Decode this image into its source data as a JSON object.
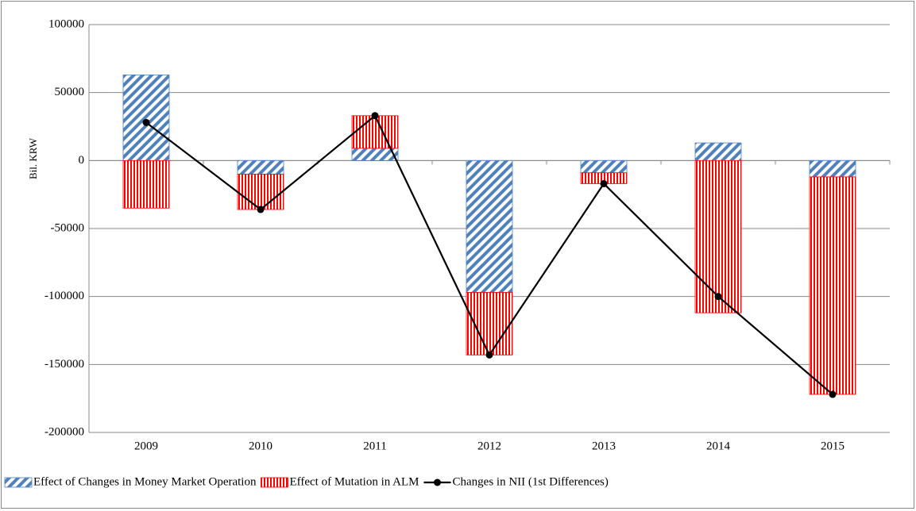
{
  "chart_data": {
    "type": "bar",
    "y_label": "Bil. KRW",
    "categories": [
      "2009",
      "2010",
      "2011",
      "2012",
      "2013",
      "2014",
      "2015"
    ],
    "series": [
      {
        "name": "Effect of Changes in Money Market Operation",
        "color": "#4f81bd",
        "kind": "bar",
        "values": [
          63000,
          -10000,
          9000,
          -97000,
          -9000,
          13000,
          -12000
        ]
      },
      {
        "name": "Effect of Mutation in ALM",
        "color": "#ff0000",
        "kind": "bar",
        "values": [
          -35000,
          -26000,
          24000,
          -46000,
          -8000,
          -112000,
          -160000
        ]
      },
      {
        "name": "Changes in NII (1st Differences)",
        "color": "#000000",
        "kind": "line",
        "values": [
          28000,
          -36000,
          33000,
          -143000,
          -17000,
          -100000,
          -172000
        ]
      }
    ],
    "ylim": [
      -200000,
      100000
    ],
    "yticks": [
      -200000,
      -150000,
      -100000,
      -50000,
      0,
      50000,
      100000
    ],
    "grid": true,
    "legend": "bottom"
  }
}
